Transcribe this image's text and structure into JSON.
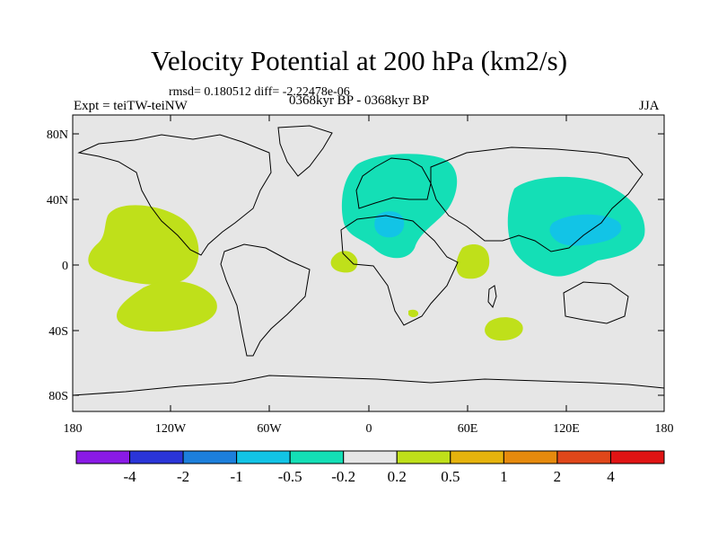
{
  "header": {
    "title": "Velocity Potential at 200 hPa (km2/s)",
    "stats": "rmsd= 0.180512 diff= -2.22478e-06",
    "experiment": "Expt = teiTW-teiNW",
    "period": "0368kyr BP - 0368kyr BP",
    "season": "JJA"
  },
  "map": {
    "lat_ticks": [
      "80N",
      "40N",
      "0",
      "40S",
      "80S"
    ],
    "lon_ticks": [
      "180",
      "120W",
      "60W",
      "0",
      "60E",
      "120E",
      "180"
    ]
  },
  "colorbar": {
    "labels": [
      "-4",
      "-2",
      "-1",
      "-0.5",
      "-0.2",
      "0.2",
      "0.5",
      "1",
      "2",
      "4"
    ],
    "colors": [
      "#8a1ae6",
      "#2a35d8",
      "#1c7fdc",
      "#12c4e6",
      "#14dfb6",
      "#e6e6e6",
      "#bfe01a",
      "#e6b30d",
      "#e68a0d",
      "#e0471a",
      "#e01414"
    ]
  },
  "colors": {
    "ocean": "#e6e6e6",
    "positive_fill": "#bfe01a",
    "negative_fill": "#14dfb6",
    "strong_negative_fill": "#12c4e6"
  }
}
